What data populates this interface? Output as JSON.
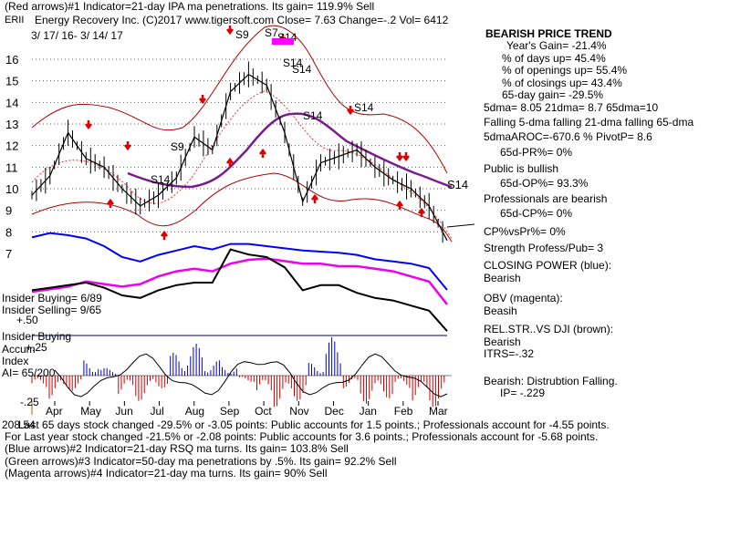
{
  "header": {
    "line1": "(Red arrows)#1 Indicator=21-day IPA ma penetrations. Its gain= 119.9% Sell",
    "ticker": "ERII",
    "line2": "Energy Recovery Inc.   (C)2017 www.tigersoft.com    Close=  7.63  Change=-.2 Vol= 6412",
    "date_range": "3/ 17/ 16- 3/ 14/ 17"
  },
  "right_panel": {
    "title": "BEARISH PRICE TREND",
    "stats": [
      "Year's Gain= -21.4%",
      "% of days up= 45.4%",
      "% of openings up= 55.4%",
      "% of closings up= 43.4%",
      "65-day gain= -29.5%"
    ],
    "ma_line": "5dma= 8.05 21dma= 8.7 65dma=10",
    "trend_line": "Falling 5-dma falling 21-dma falling 65-dma",
    "aroc_line": "5dmaAROC=-670.6 %  PivotP= 8.6",
    "pr_line": "65d-PR%= 0%",
    "public": "Public is bullish",
    "op_line": "65d-OP%= 93.3%",
    "professionals": "Professionals are bearish",
    "cp_line": "65d-CP%= 0%",
    "cpvspr": "CP%vsPr%=  0%",
    "strength": "Strength Profess/Pub= 3",
    "closing_power_title": "CLOSING POWER (blue):",
    "closing_power_val": "Bearish",
    "obv_title": "OBV (magenta):",
    "obv_val": "Beasih",
    "relstr_title": "REL.STR..VS DJI (brown):",
    "relstr_val": "Bearish",
    "itrs": "ITRS=-.32",
    "distribution": "Bearish: Distrubtion Falling.",
    "ip": "IP= -.229"
  },
  "left_labels": {
    "insider_buying1": "Insider Buying= 6/89",
    "insider_selling": "Insider Selling= 9/65",
    "plus50": "+.50",
    "insider_buying2": "Insider Buying",
    "accum": "Accum",
    "plus25": "+.25",
    "index": "Index",
    "ai": "AI= 65/200",
    "minus25": "-.25",
    "num208": "208.54"
  },
  "signals": {
    "s9_a": "S9",
    "s7": "S7",
    "s14_top": "S14",
    "s14_b": "S14",
    "s14_c": "S14",
    "s14_d": "S14",
    "s14_e": "S14",
    "s14_f": "S14",
    "s9_b": "S9",
    "s14_right": "S14"
  },
  "footer": {
    "line1": "Last 65 days stock changed -29.5% or -3.05 points:  Public accounts for  1.5 points.;  Professionals account for -4.55 points.",
    "line2": "For Last year stock changed -21.5% or -2.08 points:  Public accounts for  3.6 points.;  Professionals account for -5.68 points.",
    "line3": "(Blue arrows)#2 Indicator=21-day RSQ ma turns. Its gain= 103.8% Sell",
    "line4": "(Green arrows)#3 Indicator=50-day ma penetrations by .5%. Its gain= 92.2% Sell",
    "line5": "(Magenta arrows)#4 Indicator=21-day ma turns. Its gain= 90% Sell"
  },
  "chart_data": {
    "type": "line",
    "title": "ERII Energy Recovery Inc.",
    "x_tick_labels": [
      "Apr",
      "May",
      "Jun",
      "Jul",
      "Aug",
      "Sep",
      "Oct",
      "Nov",
      "Dec",
      "Jan",
      "Feb",
      "Mar"
    ],
    "y_tick_labels": [
      "16",
      "15",
      "14",
      "13",
      "12",
      "11",
      "10",
      "9",
      "8",
      "7"
    ],
    "ylim": [
      7,
      16
    ],
    "price_series": {
      "name": "close",
      "x": [
        "Mar",
        "Apr",
        "Apr",
        "May",
        "May",
        "Jun",
        "Jun",
        "Jul",
        "Jul",
        "Aug",
        "Aug",
        "Sep",
        "Sep",
        "Oct",
        "Oct",
        "Nov",
        "Nov",
        "Dec",
        "Dec",
        "Jan",
        "Jan",
        "Feb",
        "Feb",
        "Mar"
      ],
      "values": [
        9.7,
        10.6,
        12.6,
        11.4,
        11.0,
        10.0,
        9.2,
        9.7,
        10.5,
        12.4,
        11.8,
        14.5,
        15.3,
        14.8,
        12.6,
        9.4,
        11.2,
        11.5,
        11.8,
        11.0,
        10.4,
        10.0,
        9.2,
        7.6
      ]
    },
    "ma65_series": {
      "name": "65dma",
      "values": [
        null,
        null,
        null,
        null,
        null,
        10.5,
        10.2,
        10.1,
        10.1,
        10.5,
        11.3,
        12.1,
        13.0,
        13.6,
        13.6,
        13.1,
        12.5,
        12.0,
        11.6,
        11.2,
        10.9,
        10.6,
        10.3,
        10.0
      ]
    },
    "closing_power_series": {
      "name": "CLOSING POWER (blue)",
      "values": [
        58,
        62,
        60,
        57,
        50,
        40,
        36,
        42,
        46,
        50,
        47,
        52,
        52,
        50,
        48,
        46,
        45,
        44,
        42,
        38,
        36,
        34,
        30,
        10
      ]
    },
    "obv_series": {
      "name": "OBV (magenta)",
      "values": [
        50,
        52,
        54,
        58,
        56,
        54,
        56,
        62,
        66,
        68,
        66,
        72,
        75,
        76,
        74,
        72,
        72,
        70,
        70,
        68,
        66,
        62,
        58,
        40
      ]
    },
    "relstr_series": {
      "name": "REL.STR..VS DJI (brown)",
      "values": [
        44,
        46,
        48,
        50,
        46,
        40,
        38,
        44,
        48,
        50,
        50,
        76,
        72,
        70,
        62,
        44,
        48,
        48,
        42,
        38,
        36,
        32,
        28,
        12
      ]
    },
    "accum_index_bars": [
      -0.1,
      -0.18,
      -0.12,
      0.12,
      0.06,
      -0.15,
      -0.2,
      -0.1,
      0.18,
      0.25,
      0.12,
      0.08,
      -0.05,
      -0.15,
      -0.25,
      -0.2,
      0.1,
      0.3,
      -0.1,
      -0.22,
      -0.18,
      -0.1,
      -0.2,
      -0.25
    ]
  }
}
